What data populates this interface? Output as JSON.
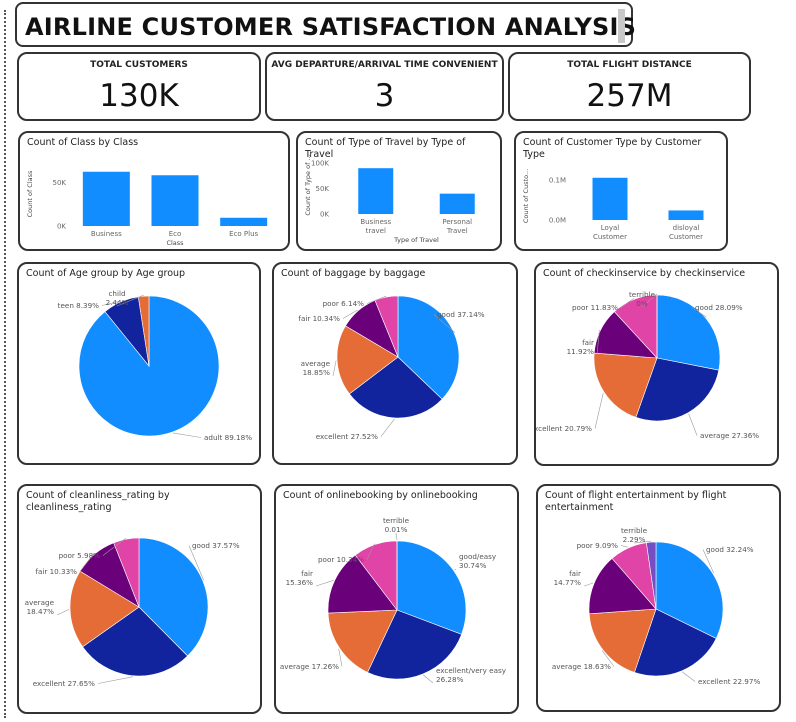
{
  "header": {
    "title": "AIRLINE CUSTOMER SATISFACTION ANALYSIS"
  },
  "kpis": [
    {
      "label": "TOTAL CUSTOMERS",
      "value": "130K"
    },
    {
      "label": "AVG DEPARTURE/ARRIVAL TIME CONVENIENT",
      "value": "3"
    },
    {
      "label": "TOTAL FLIGHT DISTANCE",
      "value": "257M"
    }
  ],
  "colors": {
    "bar": "#118DFF",
    "pie": {
      "blue": "#118DFF",
      "navy": "#12239E",
      "orange": "#E66C37",
      "purple": "#6B007B",
      "pink": "#E044A7",
      "violet": "#744EC2"
    }
  },
  "chart_data": [
    {
      "id": "class",
      "type": "bar",
      "title": "Count of Class by Class",
      "xlabel": "Class",
      "ylabel": "Count of Class",
      "categories": [
        [
          "Business"
        ],
        [
          "Eco"
        ],
        [
          "Eco Plus"
        ]
      ],
      "values": [
        62000,
        58000,
        9400
      ],
      "yticks": [
        {
          "v": 0,
          "label": "0K"
        },
        {
          "v": 50000,
          "label": "50K"
        }
      ],
      "ylim": [
        0,
        72000
      ]
    },
    {
      "id": "travel",
      "type": "bar",
      "title": "Count of Type of Travel by Type of Travel",
      "xlabel": "Type of Travel",
      "ylabel": "Count of Type of ...",
      "categories": [
        [
          "Business",
          "travel"
        ],
        [
          "Personal",
          "Travel"
        ]
      ],
      "values": [
        90000,
        40000
      ],
      "yticks": [
        {
          "v": 0,
          "label": "0K"
        },
        {
          "v": 50000,
          "label": "50K"
        },
        {
          "v": 100000,
          "label": "100K"
        }
      ],
      "ylim": [
        0,
        112000
      ]
    },
    {
      "id": "custtype",
      "type": "bar",
      "title": "Count of Customer Type by Customer Type",
      "xlabel": "",
      "ylabel": "Count of Custo...",
      "categories": [
        [
          "Loyal",
          "Customer"
        ],
        [
          "disloyal",
          "Customer"
        ]
      ],
      "values": [
        106000,
        24000
      ],
      "yticks": [
        {
          "v": 0,
          "label": "0.0M"
        },
        {
          "v": 100000,
          "label": "0.1M"
        }
      ],
      "ylim": [
        0,
        118000
      ]
    },
    {
      "id": "age",
      "type": "pie",
      "title": "Count of Age group by Age group",
      "slices": [
        {
          "name": "adult",
          "label": "adult 89.18%",
          "value": 89.18,
          "color": "blue"
        },
        {
          "name": "teen",
          "label": "teen 8.39%",
          "value": 8.39,
          "color": "navy"
        },
        {
          "name": "child",
          "label": "child 2.44%",
          "value": 2.44,
          "color": "orange"
        }
      ]
    },
    {
      "id": "baggage",
      "type": "pie",
      "title": "Count of baggage by baggage",
      "slices": [
        {
          "name": "good",
          "label": "good 37.14%",
          "value": 37.14,
          "color": "blue"
        },
        {
          "name": "excellent",
          "label": "excellent 27.52%",
          "value": 27.52,
          "color": "navy"
        },
        {
          "name": "average",
          "label": "average 18.85%",
          "value": 18.85,
          "color": "orange"
        },
        {
          "name": "fair",
          "label": "fair 10.34%",
          "value": 10.34,
          "color": "purple"
        },
        {
          "name": "poor",
          "label": "poor 6.14%",
          "value": 6.14,
          "color": "pink"
        }
      ]
    },
    {
      "id": "checkin",
      "type": "pie",
      "title": "Count of checkinservice by checkinservice",
      "slices": [
        {
          "name": "good",
          "label": "good 28.09%",
          "value": 28.09,
          "color": "blue"
        },
        {
          "name": "average",
          "label": "average 27.36%",
          "value": 27.36,
          "color": "navy"
        },
        {
          "name": "excellent",
          "label": "excellent 20.79%",
          "value": 20.79,
          "color": "orange"
        },
        {
          "name": "fair",
          "label": "fair 11.92%",
          "value": 11.92,
          "color": "purple"
        },
        {
          "name": "poor",
          "label": "poor 11.83%",
          "value": 11.83,
          "color": "pink"
        },
        {
          "name": "terrible",
          "label": "terrible 0%",
          "value": 0.01,
          "color": "violet"
        }
      ]
    },
    {
      "id": "clean",
      "type": "pie",
      "title": "Count of cleanliness_rating by cleanliness_rating",
      "slices": [
        {
          "name": "good",
          "label": "good 37.57%",
          "value": 37.57,
          "color": "blue"
        },
        {
          "name": "excellent",
          "label": "excellent 27.65%",
          "value": 27.65,
          "color": "navy"
        },
        {
          "name": "average",
          "label": "average 18.47%",
          "value": 18.47,
          "color": "orange"
        },
        {
          "name": "fair",
          "label": "fair 10.33%",
          "value": 10.33,
          "color": "purple"
        },
        {
          "name": "poor",
          "label": "poor 5.98%",
          "value": 5.98,
          "color": "pink"
        }
      ]
    },
    {
      "id": "online",
      "type": "pie",
      "title": "Count of onlinebooking by onlinebooking",
      "slices": [
        {
          "name": "good/easy",
          "label": "good/easy 30.74%",
          "value": 30.74,
          "color": "blue"
        },
        {
          "name": "excellent/very easy",
          "label": "excellent/very easy 26.28%",
          "value": 26.28,
          "color": "navy"
        },
        {
          "name": "average",
          "label": "average 17.26%",
          "value": 17.26,
          "color": "orange"
        },
        {
          "name": "fair",
          "label": "fair 15.36%",
          "value": 15.36,
          "color": "purple"
        },
        {
          "name": "poor",
          "label": "poor 10.34%",
          "value": 10.34,
          "color": "pink"
        },
        {
          "name": "terrible",
          "label": "terrible 0.01%",
          "value": 0.01,
          "color": "violet"
        }
      ]
    },
    {
      "id": "ent",
      "type": "pie",
      "title": "Count of flight entertainment by flight entertainment",
      "slices": [
        {
          "name": "good",
          "label": "good 32.24%",
          "value": 32.24,
          "color": "blue"
        },
        {
          "name": "excellent",
          "label": "excellent 22.97%",
          "value": 22.97,
          "color": "navy"
        },
        {
          "name": "average",
          "label": "average 18.63%",
          "value": 18.63,
          "color": "orange"
        },
        {
          "name": "fair",
          "label": "fair 14.77%",
          "value": 14.77,
          "color": "purple"
        },
        {
          "name": "poor",
          "label": "poor 9.09%",
          "value": 9.09,
          "color": "pink"
        },
        {
          "name": "terrible",
          "label": "terrible 2.29%",
          "value": 2.29,
          "color": "violet"
        }
      ]
    }
  ]
}
